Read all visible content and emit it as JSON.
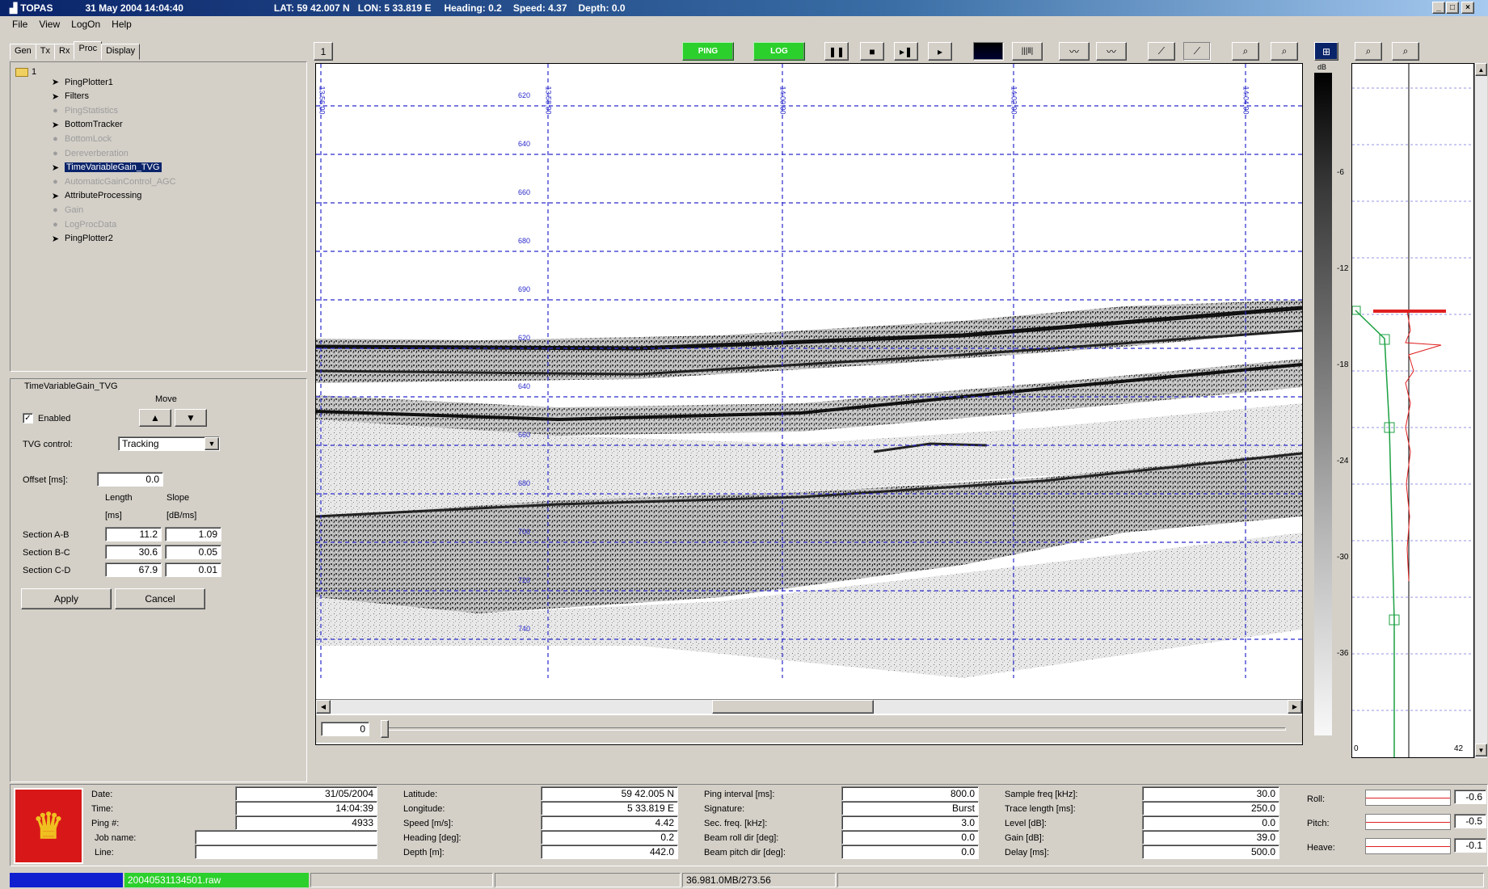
{
  "titlebar": {
    "app": "TOPAS",
    "datetime": "31 May 2004 14:04:40",
    "lat": "LAT: 59 42.007 N",
    "lon": "LON: 5 33.819 E",
    "heading": "Heading: 0.2",
    "speed": "Speed: 4.37",
    "depth": "Depth: 0.0"
  },
  "menu": [
    "File",
    "View",
    "LogOn",
    "Help"
  ],
  "tabs": [
    "Gen",
    "Tx",
    "Rx",
    "Proc",
    "Display"
  ],
  "toolbar": {
    "counter": "1",
    "ping_btn": "PING",
    "log_btn": "LOG"
  },
  "tree": {
    "root": "1",
    "items": [
      {
        "label": "PingPlotter1",
        "enabled": true
      },
      {
        "label": "Filters",
        "enabled": true
      },
      {
        "label": "PingStatistics",
        "enabled": false
      },
      {
        "label": "BottomTracker",
        "enabled": true
      },
      {
        "label": "BottomLock",
        "enabled": false
      },
      {
        "label": "Dereverberation",
        "enabled": false
      },
      {
        "label": "TimeVariableGain_TVG",
        "enabled": true,
        "selected": true
      },
      {
        "label": "AutomaticGainControl_AGC",
        "enabled": false
      },
      {
        "label": "AttributeProcessing",
        "enabled": true
      },
      {
        "label": "Gain",
        "enabled": false
      },
      {
        "label": "LogProcData",
        "enabled": false
      },
      {
        "label": "PingPlotter2",
        "enabled": true
      }
    ]
  },
  "tvg": {
    "group_title": "TimeVariableGain_TVG",
    "move_label": "Move",
    "enabled_label": "Enabled",
    "enabled_checked": true,
    "control_label": "TVG control:",
    "control_value": "Tracking",
    "offset_label": "Offset [ms]:",
    "offset_value": "0.0",
    "length_header": "Length",
    "length_unit": "[ms]",
    "slope_header": "Slope",
    "slope_unit": "[dB/ms]",
    "sections": [
      {
        "label": "Section A-B",
        "length": "11.2",
        "slope": "1.09"
      },
      {
        "label": "Section B-C",
        "length": "30.6",
        "slope": "0.05"
      },
      {
        "label": "Section C-D",
        "length": "67.9",
        "slope": "0.01"
      }
    ],
    "apply": "Apply",
    "cancel": "Cancel"
  },
  "plot": {
    "depth_labels": [
      "620",
      "640",
      "660",
      "680",
      "690",
      "620",
      "640",
      "660",
      "680",
      "700",
      "720",
      "740"
    ],
    "column_times": [
      "13:56:00",
      "13:58:00",
      "14:00:00",
      "14:02:00",
      "14:04:00"
    ],
    "scroll_value": "0"
  },
  "colorbar": {
    "unit": "dB",
    "ticks": [
      "-6",
      "-12",
      "-18",
      "-24",
      "-30",
      "-36"
    ]
  },
  "rightplot": {
    "min_label": "0",
    "max_label": "42"
  },
  "info": {
    "date_label": "Date:",
    "date_value": "31/05/2004",
    "time_label": "Time:",
    "time_value": "14:04:39",
    "ping_label": "Ping #:",
    "ping_value": "4933",
    "job_label": "Job name:",
    "job_value": "",
    "line_label": "Line:",
    "line_value": "",
    "lat_label": "Latitude:",
    "lat_value": "59 42.005 N",
    "lon_label": "Longitude:",
    "lon_value": "5 33.819 E",
    "speed_label": "Speed [m/s]:",
    "speed_value": "4.42",
    "heading_label": "Heading [deg]:",
    "heading_value": "0.2",
    "depth_label": "Depth [m]:",
    "depth_value": "442.0",
    "pingint_label": "Ping interval [ms]:",
    "pingint_value": "800.0",
    "sig_label": "Signature:",
    "sig_value": "Burst",
    "secfreq_label": "Sec. freq. [kHz]:",
    "secfreq_value": "3.0",
    "roll_label": "Beam roll dir [deg]:",
    "roll_value": "0.0",
    "pitch_label": "Beam pitch dir [deg]:",
    "pitch_value": "0.0",
    "samp_label": "Sample freq [kHz]:",
    "samp_value": "30.0",
    "trace_label": "Trace length [ms]:",
    "trace_value": "250.0",
    "level_label": "Level [dB]:",
    "level_value": "0.0",
    "gain_label": "Gain [dB]:",
    "gain_value": "39.0",
    "delay_label": "Delay [ms]:",
    "delay_value": "500.0",
    "mroll_label": "Roll:",
    "mroll_value": "-0.6",
    "mpitch_label": "Pitch:",
    "mpitch_value": "-0.5",
    "heave_label": "Heave:",
    "heave_value": "-0.1"
  },
  "status": {
    "file": "20040531134501.raw",
    "disk": "36.981.0MB/273.56"
  }
}
